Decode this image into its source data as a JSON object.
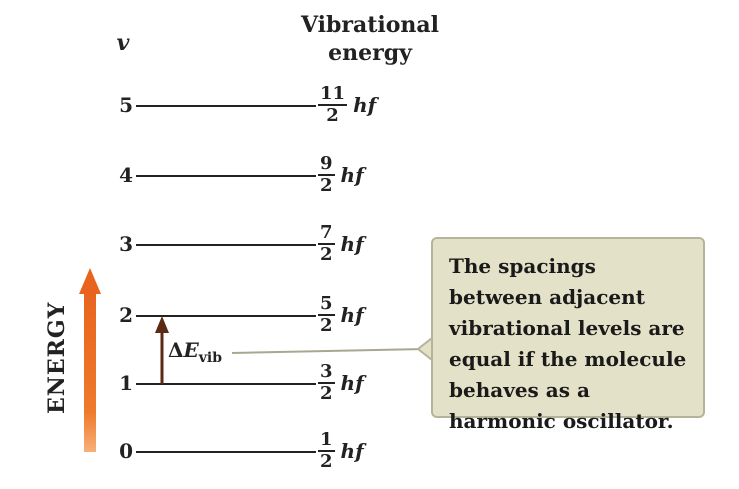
{
  "header": {
    "v_symbol": "v",
    "title_line1": "Vibrational",
    "title_line2": "energy"
  },
  "levels": [
    {
      "v": "5",
      "numerator": "11",
      "denominator": "2",
      "unit": "hf"
    },
    {
      "v": "4",
      "numerator": "9",
      "denominator": "2",
      "unit": "hf"
    },
    {
      "v": "3",
      "numerator": "7",
      "denominator": "2",
      "unit": "hf"
    },
    {
      "v": "2",
      "numerator": "5",
      "denominator": "2",
      "unit": "hf"
    },
    {
      "v": "1",
      "numerator": "3",
      "denominator": "2",
      "unit": "hf"
    },
    {
      "v": "0",
      "numerator": "1",
      "denominator": "2",
      "unit": "hf"
    }
  ],
  "delta": {
    "prefix": "Δ",
    "symbol": "E",
    "subscript": "vib"
  },
  "energy_axis_label": "ENERGY",
  "callout_text": "The spacings between adjacent vibrational levels are equal if the molecule behaves as a harmonic oscillator.",
  "colors": {
    "energy_arrow": "#e8641e",
    "delta_arrow": "#5a2a14",
    "callout_bg": "#e3e1c8",
    "callout_border": "#b5b39a",
    "lines": "#222222"
  }
}
